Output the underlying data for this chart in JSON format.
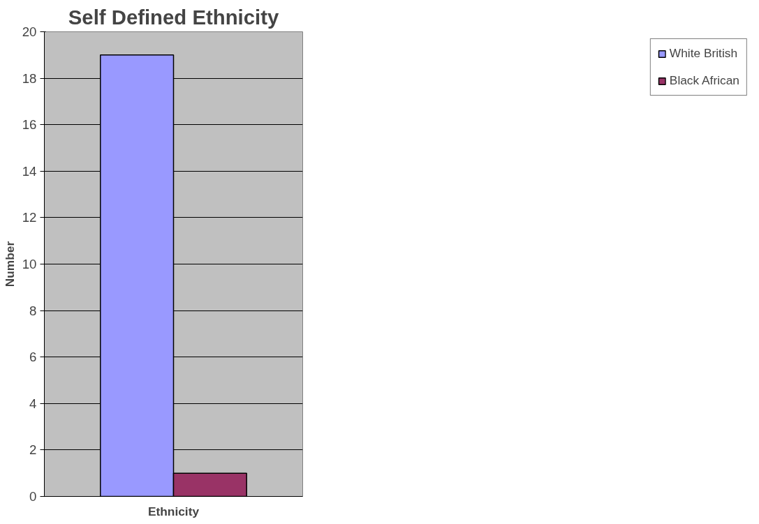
{
  "chart_data": {
    "type": "bar",
    "title": "Self Defined Ethnicity",
    "xlabel": "Ethnicity",
    "ylabel": "Number",
    "categories": [
      null
    ],
    "series": [
      {
        "name": "White British",
        "color": "#9999ff",
        "values": [
          19
        ]
      },
      {
        "name": "Black African",
        "color": "#993366",
        "values": [
          1
        ]
      }
    ],
    "ylim": [
      0,
      20
    ],
    "yticks": [
      0,
      2,
      4,
      6,
      8,
      10,
      12,
      14,
      16,
      18,
      20
    ],
    "grid": "y",
    "legend": "right"
  }
}
